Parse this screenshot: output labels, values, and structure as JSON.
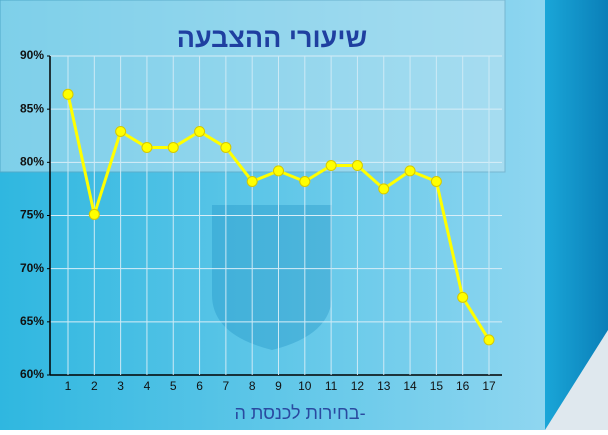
{
  "chart_data": {
    "type": "line",
    "title": "שיעורי ההצבעה",
    "x_label": "בחירות לכנסת ה-",
    "categories": [
      1,
      2,
      3,
      4,
      5,
      6,
      7,
      8,
      9,
      10,
      11,
      12,
      13,
      14,
      15,
      16,
      17
    ],
    "values": [
      86.4,
      75.1,
      82.9,
      81.4,
      81.4,
      82.9,
      81.4,
      78.2,
      79.2,
      78.2,
      79.7,
      79.7,
      77.5,
      79.2,
      78.2,
      67.3,
      63.3
    ],
    "color": "#ffff00",
    "ylim": [
      60,
      90
    ],
    "yticks": [
      {
        "value": 60,
        "label": "60%"
      },
      {
        "value": 65,
        "label": "65%"
      },
      {
        "value": 70,
        "label": "70%"
      },
      {
        "value": 75,
        "label": "75%"
      },
      {
        "value": 80,
        "label": "80%"
      },
      {
        "value": 85,
        "label": "85%"
      },
      {
        "value": 90,
        "label": "90%"
      }
    ],
    "grid": true
  }
}
